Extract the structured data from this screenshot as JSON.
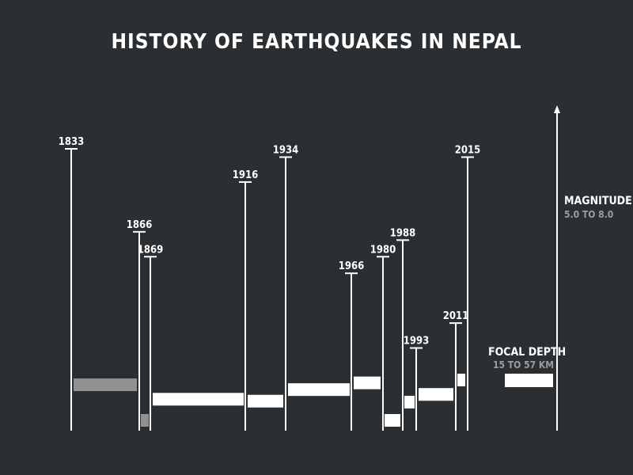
{
  "chart_data": {
    "type": "bar",
    "title": "HISTORY OF EARTHQUAKES IN NEPAL",
    "encoding": {
      "magnitude": "height of vertical year line",
      "focal_depth": "vertical offset of horizontal bar"
    },
    "legend": {
      "magnitude_label": "MAGNITUDE",
      "magnitude_range": "5.0 TO 8.0",
      "depth_label": "FOCAL DEPTH",
      "depth_range": "15 TO 57 KM"
    },
    "events": [
      {
        "year": "1833",
        "magnitude": 7.7,
        "depth_km": 20,
        "highlight": "gray"
      },
      {
        "year": "1866",
        "magnitude": 6.7,
        "depth_km": 57,
        "highlight": "gray"
      },
      {
        "year": "1869",
        "magnitude": 6.4,
        "depth_km": 35,
        "highlight": ""
      },
      {
        "year": "1916",
        "magnitude": 7.3,
        "depth_km": 37,
        "highlight": ""
      },
      {
        "year": "1934",
        "magnitude": 7.6,
        "depth_km": 25,
        "highlight": ""
      },
      {
        "year": "1966",
        "magnitude": 6.2,
        "depth_km": 18,
        "highlight": ""
      },
      {
        "year": "1980",
        "magnitude": 6.4,
        "depth_km": 57,
        "highlight": ""
      },
      {
        "year": "1988",
        "magnitude": 6.6,
        "depth_km": 38,
        "highlight": ""
      },
      {
        "year": "1993",
        "magnitude": 5.3,
        "depth_km": 30,
        "highlight": ""
      },
      {
        "year": "2011",
        "magnitude": 5.6,
        "depth_km": 15,
        "highlight": ""
      },
      {
        "year": "2015",
        "magnitude": 7.6,
        "depth_km": 15,
        "highlight": ""
      }
    ]
  },
  "colors": {
    "background": "#2b2f32",
    "line": "#ffffff",
    "bar": "#ffffff",
    "bar_gray": "#8f9193",
    "muted_text": "#9b9d9f"
  }
}
